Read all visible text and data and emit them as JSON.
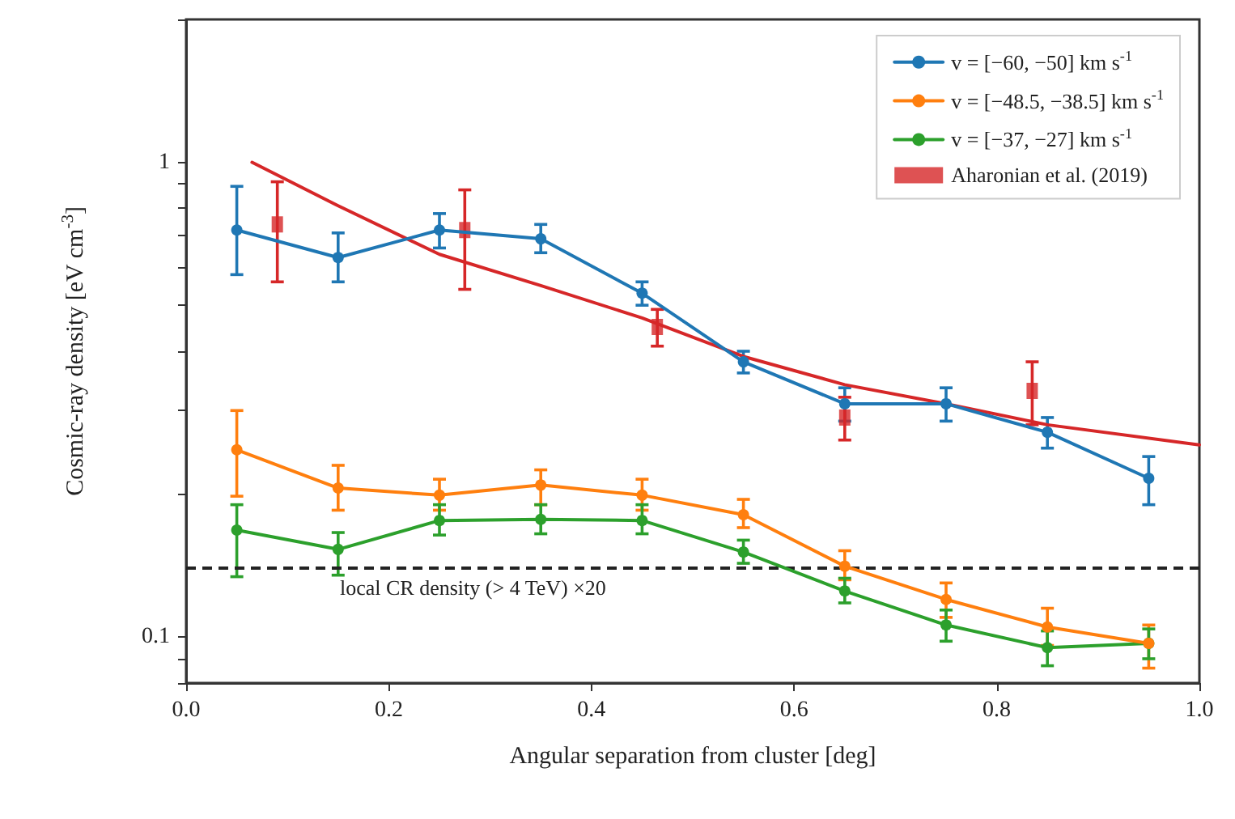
{
  "chart_data": {
    "type": "line",
    "xlabel": "Angular separation from cluster [deg]",
    "ylabel": "Cosmic-ray density [eV cm$^{-3}$]",
    "log": "y",
    "grid": false,
    "legend": "top right",
    "marker": "circle",
    "line_style": "solid",
    "xlim": [
      0,
      1
    ],
    "xticks": [
      {
        "value": 0,
        "label": "0.0"
      },
      0.2,
      0.4,
      0.6,
      0.8,
      {
        "value": 1,
        "label": "1.0"
      }
    ],
    "ylim": [
      0.08,
      2
    ],
    "yticks": [
      {
        "value": 0.08,
        "label": null
      },
      {
        "value": 0.09,
        "label": null
      },
      0.1,
      {
        "value": 0.2,
        "label": null
      },
      {
        "value": 0.3,
        "label": null
      },
      {
        "value": 0.4,
        "label": null
      },
      {
        "value": 0.5,
        "label": null
      },
      {
        "value": 0.6,
        "label": null
      },
      {
        "value": 0.7,
        "label": null
      },
      {
        "value": 0.8,
        "label": null
      },
      {
        "value": 0.9,
        "label": null
      },
      1,
      {
        "value": 2,
        "label": null
      }
    ],
    "x": [
      0.05,
      0.15,
      0.25,
      0.35,
      0.45,
      0.55,
      0.65,
      0.75,
      0.85,
      0.95
    ],
    "series": [
      {
        "name": "v = [−60, −50] km s$^{-1}$",
        "color": "#1f77b4",
        "values": [
          0.72,
          0.63,
          0.72,
          0.69,
          0.53,
          0.38,
          0.31,
          0.31,
          0.27,
          0.216
        ],
        "errors": [
          [
            0.58,
            0.89
          ],
          [
            0.56,
            0.71
          ],
          [
            0.66,
            0.78
          ],
          [
            0.645,
            0.74
          ],
          [
            0.5,
            0.56
          ],
          [
            0.36,
            0.4
          ],
          [
            0.285,
            0.335
          ],
          [
            0.285,
            0.335
          ],
          [
            0.25,
            0.29
          ],
          [
            0.19,
            0.24
          ]
        ]
      },
      {
        "name": "v = [−48.5, −38.5] km s$^{-1}$",
        "color": "#ff7f0e",
        "values": [
          0.248,
          0.206,
          0.199,
          0.209,
          0.199,
          0.181,
          0.141,
          0.12,
          0.105,
          0.097
        ],
        "errors": [
          [
            0.198,
            0.3
          ],
          [
            0.185,
            0.23
          ],
          [
            0.185,
            0.215
          ],
          [
            0.19,
            0.225
          ],
          [
            0.185,
            0.215
          ],
          [
            0.17,
            0.195
          ],
          [
            0.132,
            0.152
          ],
          [
            0.11,
            0.13
          ],
          [
            0.096,
            0.115
          ],
          [
            0.086,
            0.106
          ]
        ]
      },
      {
        "name": "v = [−37, −27] km s$^{-1}$",
        "color": "#2ca02c",
        "values": [
          0.168,
          0.153,
          0.176,
          0.177,
          0.176,
          0.151,
          0.125,
          0.106,
          0.095,
          0.097
        ],
        "errors": [
          [
            0.134,
            0.19
          ],
          [
            0.135,
            0.166
          ],
          [
            0.164,
            0.19
          ],
          [
            0.165,
            0.19
          ],
          [
            0.165,
            0.19
          ],
          [
            0.143,
            0.16
          ],
          [
            0.118,
            0.133
          ],
          [
            0.098,
            0.114
          ],
          [
            0.087,
            0.103
          ],
          [
            0.09,
            0.104
          ]
        ]
      },
      {
        "name": "Aharonian et al. (2019)",
        "type": "scatter",
        "marker": "square",
        "color": "#d62728",
        "x": [
          0.09,
          0.275,
          0.465,
          0.65,
          0.835
        ],
        "values": [
          0.74,
          0.72,
          0.45,
          0.29,
          0.33
        ],
        "errors": [
          [
            0.56,
            0.91
          ],
          [
            0.54,
            0.875
          ],
          [
            0.41,
            0.49
          ],
          [
            0.26,
            0.32
          ],
          [
            0.28,
            0.38
          ]
        ]
      },
      {
        "type": "line",
        "marker": "none",
        "color": "#d62728",
        "x": [
          0.065,
          0.15,
          0.25,
          0.35,
          0.45,
          0.55,
          0.65,
          0.75,
          0.85,
          1.0
        ],
        "values": [
          1.0,
          0.81,
          0.64,
          0.55,
          0.47,
          0.39,
          0.34,
          0.31,
          0.28,
          0.254
        ]
      }
    ],
    "ref_lines": [
      {
        "axis": "y",
        "value": 0.139,
        "label": "local CR density (> 4 TeV) ×20",
        "color": "#222222",
        "line_style": "dashed"
      }
    ]
  }
}
